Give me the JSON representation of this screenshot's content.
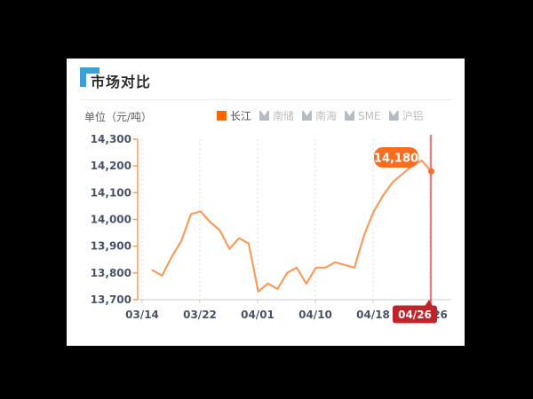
{
  "window": {
    "background": "#000000"
  },
  "card": {
    "background": "#ffffff"
  },
  "header": {
    "title": "市场对比",
    "accent_color": "#3d9fd4"
  },
  "chart_header": {
    "unit_label": "单位（元/吨）",
    "legend": {
      "items": [
        {
          "label": "长江",
          "active": true,
          "marker_icon": "square-icon"
        },
        {
          "label": "南储",
          "active": false,
          "marker_icon": "notched-square-icon"
        },
        {
          "label": "南海",
          "active": false,
          "marker_icon": "notched-square-icon"
        },
        {
          "label": "SME",
          "active": false,
          "marker_icon": "notched-square-icon"
        },
        {
          "label": "沪铝",
          "active": false,
          "marker_icon": "notched-square-icon"
        }
      ],
      "active_marker_color": "#ff6600",
      "inactive_marker_color": "#b4bcc2",
      "active_text_color": "#4d4d4d",
      "inactive_text_color": "#b9bfc5"
    }
  },
  "chart_data": {
    "type": "line",
    "title": "市场对比",
    "unit": "元/吨",
    "x_tick_labels": [
      "03/14",
      "03/22",
      "04/01",
      "04/10",
      "04/18",
      "04/26"
    ],
    "y_tick_labels": [
      "14,300",
      "14,200",
      "14,100",
      "14,000",
      "13,900",
      "13,800",
      "13,700"
    ],
    "ylim": [
      13700,
      14300
    ],
    "y_step": 100,
    "grid": "vertical-dotted",
    "legend_position": "top",
    "series": [
      {
        "name": "长江",
        "color": "#f99b5f",
        "values": [
          13810,
          13790,
          13860,
          13920,
          14020,
          14030,
          13990,
          13960,
          13890,
          13930,
          13910,
          13730,
          13760,
          13740,
          13800,
          13820,
          13760,
          13820,
          13820,
          13840,
          13830,
          13820,
          13940,
          14030,
          14090,
          14140,
          14170,
          14200,
          14220,
          14180
        ]
      }
    ],
    "annotations": {
      "last_value": 14180,
      "last_value_label": "14,180",
      "last_value_badge_color": "#fb6c1f",
      "crosshair_date_label": "04/26",
      "crosshair_color": "#c1232b"
    },
    "axis_colors": {
      "y_axis": "#f99b5f",
      "x_axis": "#cccccc",
      "labels": "#4a5366",
      "gridline": "#dcdcdc"
    }
  }
}
